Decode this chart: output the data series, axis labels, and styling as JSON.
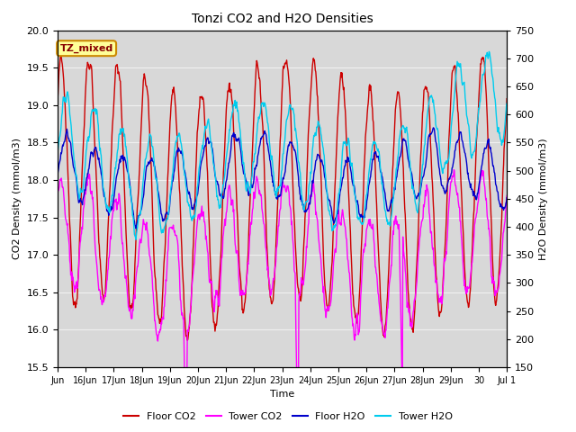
{
  "title": "Tonzi CO2 and H2O Densities",
  "xlabel": "Time",
  "ylabel_left": "CO2 Density (mmol/m3)",
  "ylabel_right": "H2O Density (mmol/m3)",
  "ylim_left": [
    15.5,
    20.0
  ],
  "ylim_right": [
    150,
    750
  ],
  "annotation_text": "TZ_mixed",
  "annotation_bg": "#FFFF99",
  "annotation_border": "#CC8800",
  "colors": {
    "floor_co2": "#CC0000",
    "tower_co2": "#FF00FF",
    "floor_h2o": "#0000CC",
    "tower_h2o": "#00CCEE"
  },
  "legend_labels": [
    "Floor CO2",
    "Tower CO2",
    "Floor H2O",
    "Tower H2O"
  ],
  "x_tick_labels": [
    "Jun",
    "16Jun",
    "17Jun",
    "18Jun",
    "19Jun",
    "20Jun",
    "21Jun",
    "22Jun",
    "23Jun",
    "24Jun",
    "25Jun",
    "26Jun",
    "27Jun",
    "28Jun",
    "29Jun",
    "30",
    "Jul 1"
  ],
  "x_tick_positions": [
    15,
    16,
    17,
    18,
    19,
    20,
    21,
    22,
    23,
    24,
    25,
    26,
    27,
    28,
    29,
    30,
    31
  ],
  "background_color": "#DCDCDC",
  "plot_bg_color": "#D8D8D8",
  "grid_color": "#F0F0F0",
  "n_points": 960,
  "date_start": 15,
  "date_end": 31,
  "seed": 12345
}
